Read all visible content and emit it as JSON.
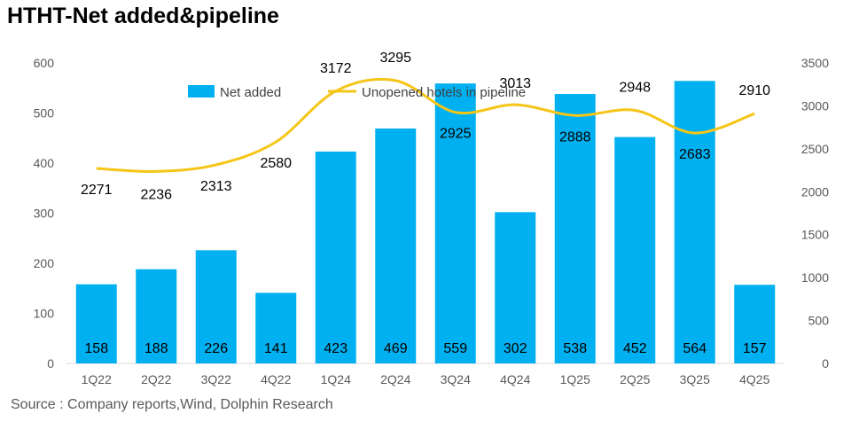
{
  "title": "HTHT-Net added&pipeline",
  "source": "Source : Company reports,Wind, Dolphin Research",
  "chart_data": {
    "type": "bar",
    "categories": [
      "1Q22",
      "2Q22",
      "3Q22",
      "4Q22",
      "1Q24",
      "2Q24",
      "3Q24",
      "4Q24",
      "1Q25",
      "2Q25",
      "3Q25",
      "4Q25"
    ],
    "series": [
      {
        "name": "Net added",
        "type": "bar",
        "axis": "left",
        "color": "#00B0F0",
        "values": [
          158,
          188,
          226,
          141,
          423,
          469,
          559,
          302,
          538,
          452,
          564,
          157
        ]
      },
      {
        "name": "Unopened hotels in pipeline",
        "type": "line",
        "axis": "right",
        "color": "#F5C518",
        "values": [
          2271,
          2236,
          2313,
          2580,
          3172,
          3295,
          2925,
          3013,
          2888,
          2948,
          2683,
          2910
        ]
      }
    ],
    "ylim_left": [
      0,
      600
    ],
    "yticks_left": [
      0,
      100,
      200,
      300,
      400,
      500,
      600
    ],
    "ylim_right": [
      0,
      3500
    ],
    "yticks_right": [
      0,
      500,
      1000,
      1500,
      2000,
      2500,
      3000,
      3500
    ],
    "legend_position": "top-center",
    "grid": false
  }
}
